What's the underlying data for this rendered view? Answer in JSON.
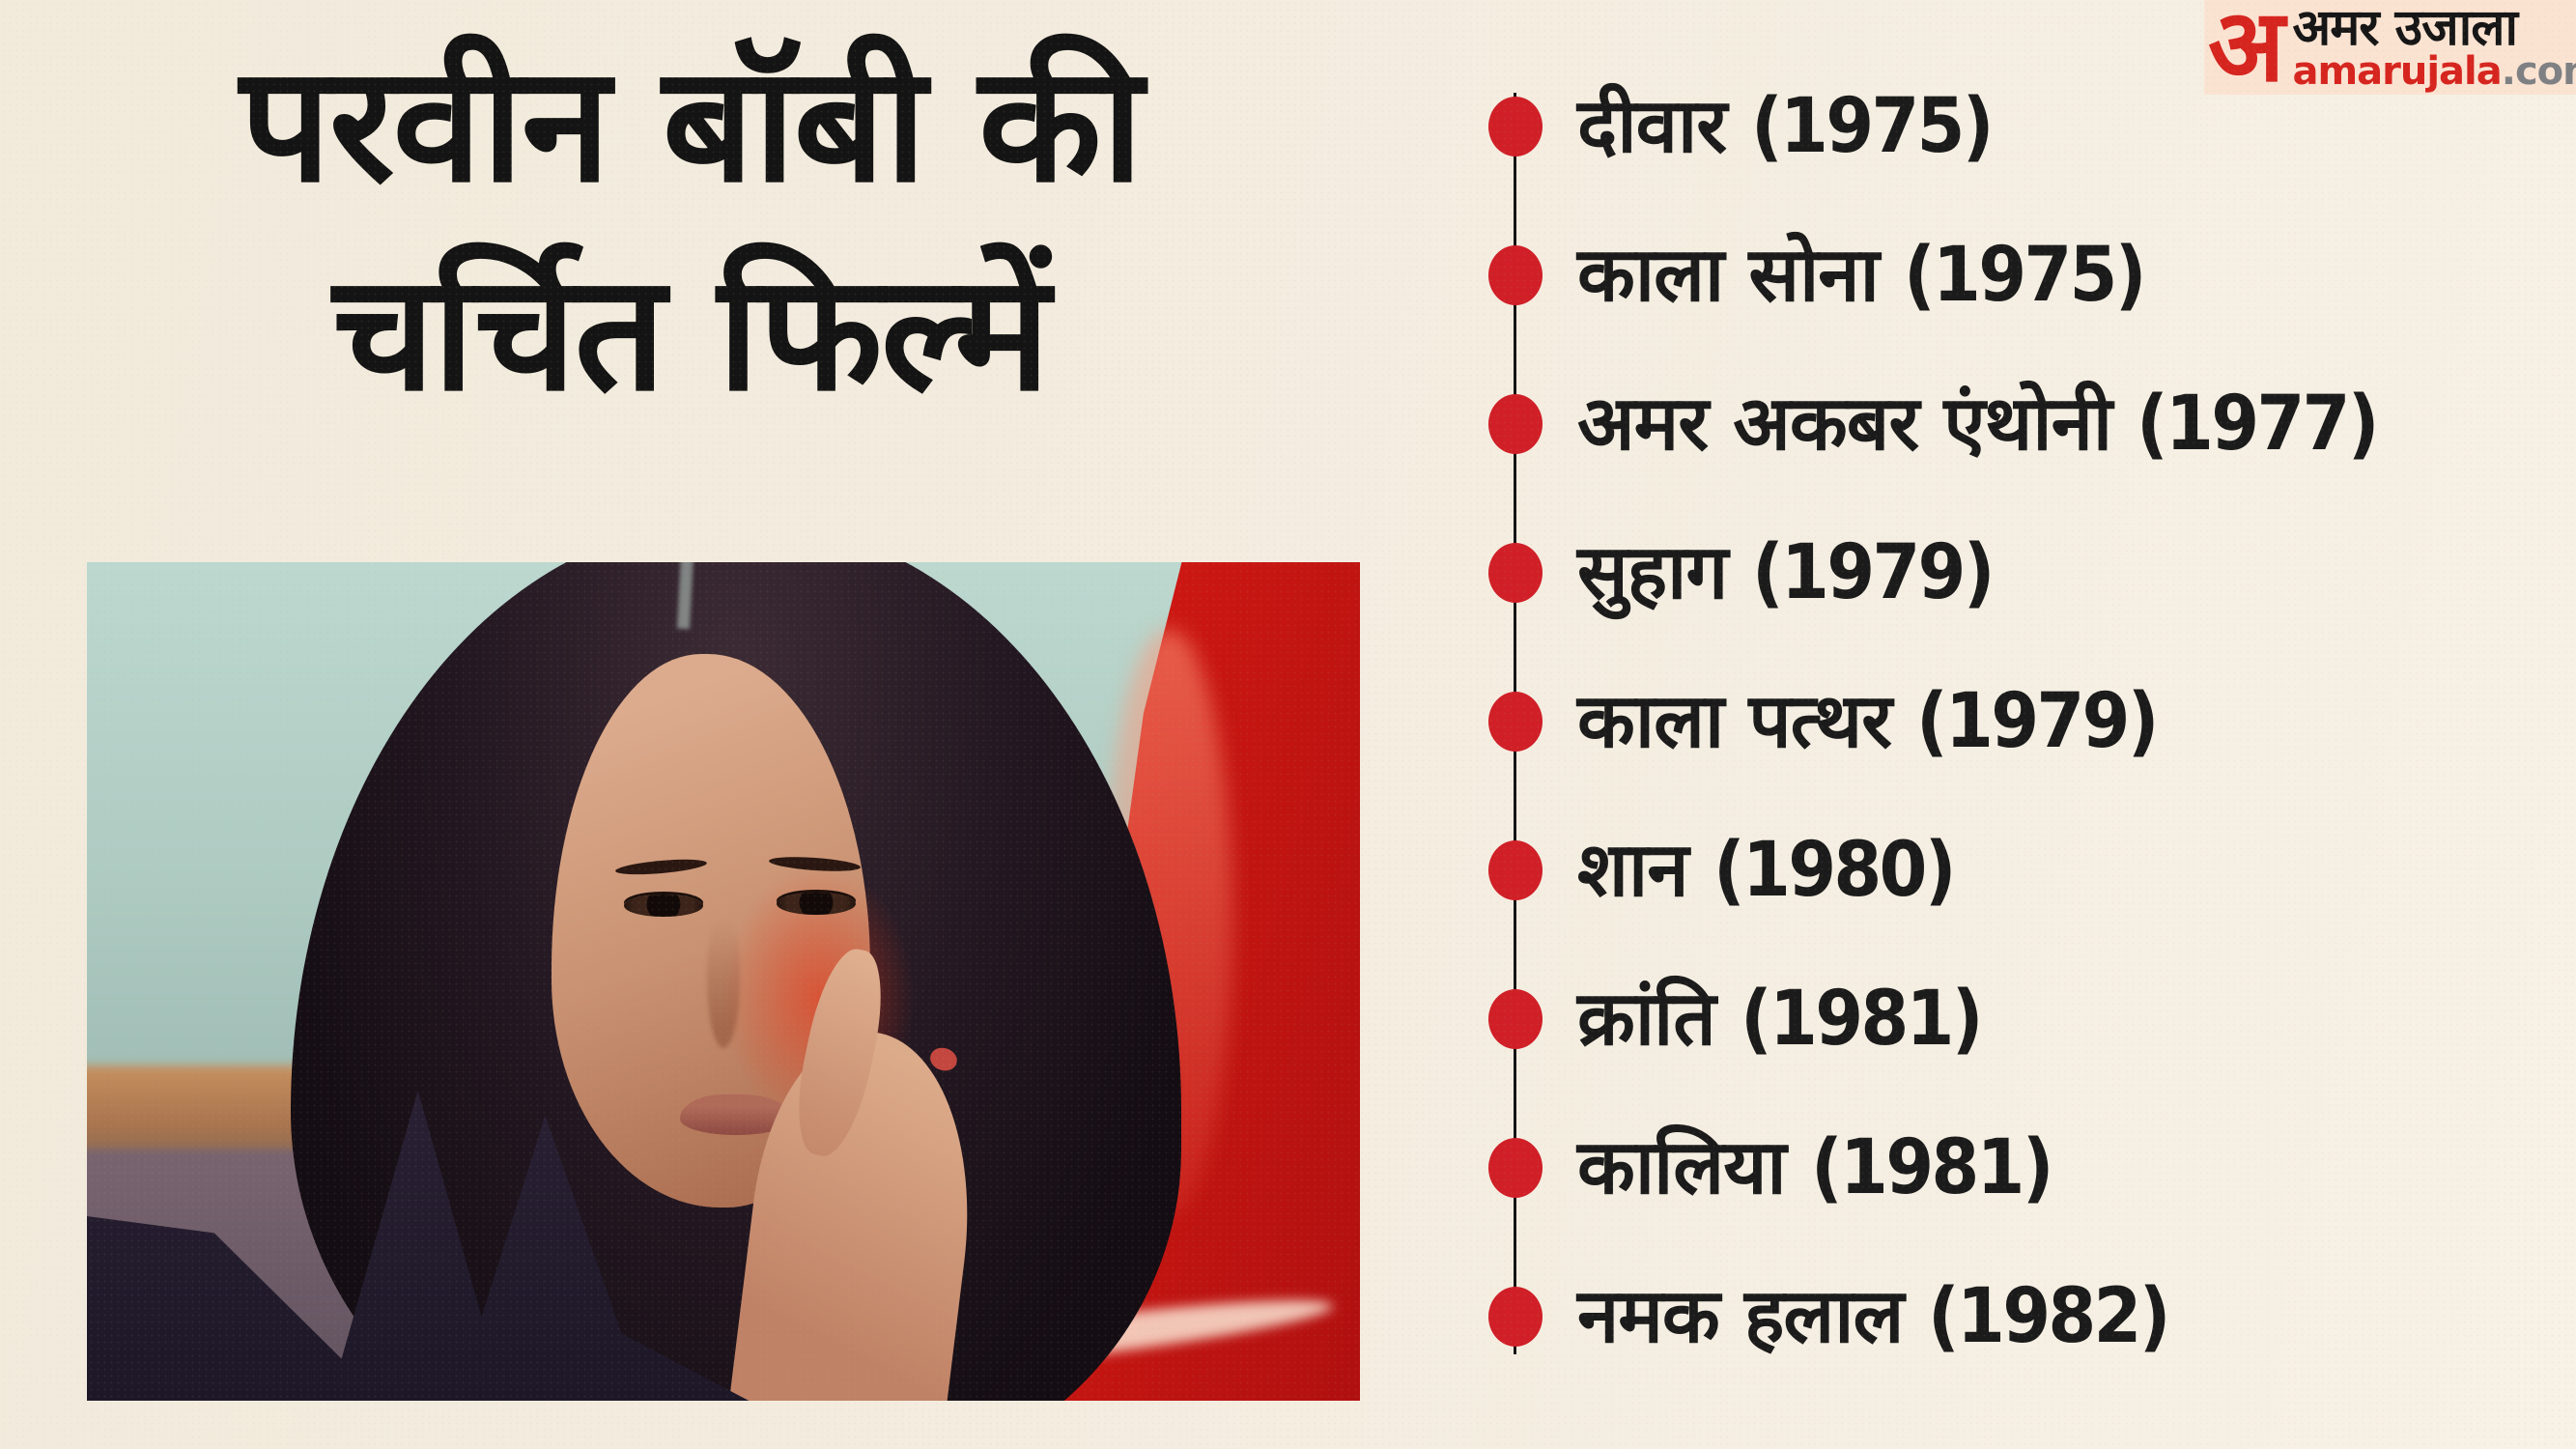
{
  "title": {
    "line1": "परवीन बॉबी की",
    "line2": "चर्चित फिल्में"
  },
  "films": [
    {
      "title": "दीवार",
      "year": "(1975)"
    },
    {
      "title": "काला सोना",
      "year": "(1975)"
    },
    {
      "title": "अमर अकबर एंथोनी",
      "year": "(1977)"
    },
    {
      "title": "सुहाग",
      "year": "(1979)"
    },
    {
      "title": "काला पत्थर",
      "year": "(1979)"
    },
    {
      "title": "शान",
      "year": "(1980)"
    },
    {
      "title": "क्रांति",
      "year": "(1981)"
    },
    {
      "title": "कालिया",
      "year": "(1981)"
    },
    {
      "title": "नमक हलाल",
      "year": "(1982)"
    }
  ],
  "timeline": {
    "dot_color": "#d01f27",
    "line_color": "#141414"
  },
  "logo": {
    "mark": "अ",
    "name_hindi": "अमर उजाला",
    "domain_red": "amarujala",
    "domain_gray": ".com",
    "strip_bg": "#fbe3d2",
    "accent_red": "#d6251f",
    "accent_gray": "#7e8083"
  },
  "colors": {
    "page_background": "#f3ecdf",
    "headline_text": "#141414",
    "list_text": "#1b1b1b",
    "photo_backdrop_teal": "#aecbc2",
    "photo_drape_red": "#d61c14"
  }
}
